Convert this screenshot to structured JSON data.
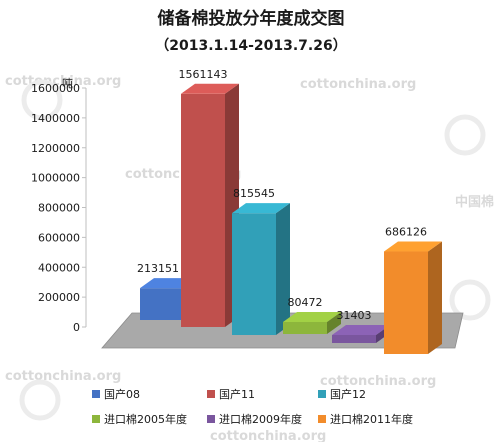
{
  "chart_data": {
    "type": "bar",
    "title": "储备棉投放分年度成交图",
    "subtitle": "（2013.1.14-2013.7.26）",
    "ylabel": "吨",
    "ylim": [
      0,
      1600000
    ],
    "yticks": [
      "0",
      "200000",
      "400000",
      "600000",
      "800000",
      "1000000",
      "1200000",
      "1400000",
      "1600000"
    ],
    "grid": false,
    "legend_position": "bottom",
    "three_d": true,
    "series": [
      {
        "name": "国产08",
        "value": 213151,
        "label": "213151",
        "color": "#4472C4"
      },
      {
        "name": "国产11",
        "value": 1561143,
        "label": "1561143",
        "color": "#C0504D"
      },
      {
        "name": "国产12",
        "value": 815545,
        "label": "815545",
        "color": "#31A0B8"
      },
      {
        "name": "进口棉2005年度",
        "value": 80472,
        "label": "80472",
        "color": "#8DB63C"
      },
      {
        "name": "进口棉2009年度",
        "value": 31403,
        "label": "31403",
        "color": "#7A569E"
      },
      {
        "name": "进口棉2011年度",
        "value": 686126,
        "label": "686126",
        "color": "#F28C2B"
      }
    ]
  },
  "watermark": {
    "text": "cottonchina.org",
    "text_cn": "中国棉"
  }
}
